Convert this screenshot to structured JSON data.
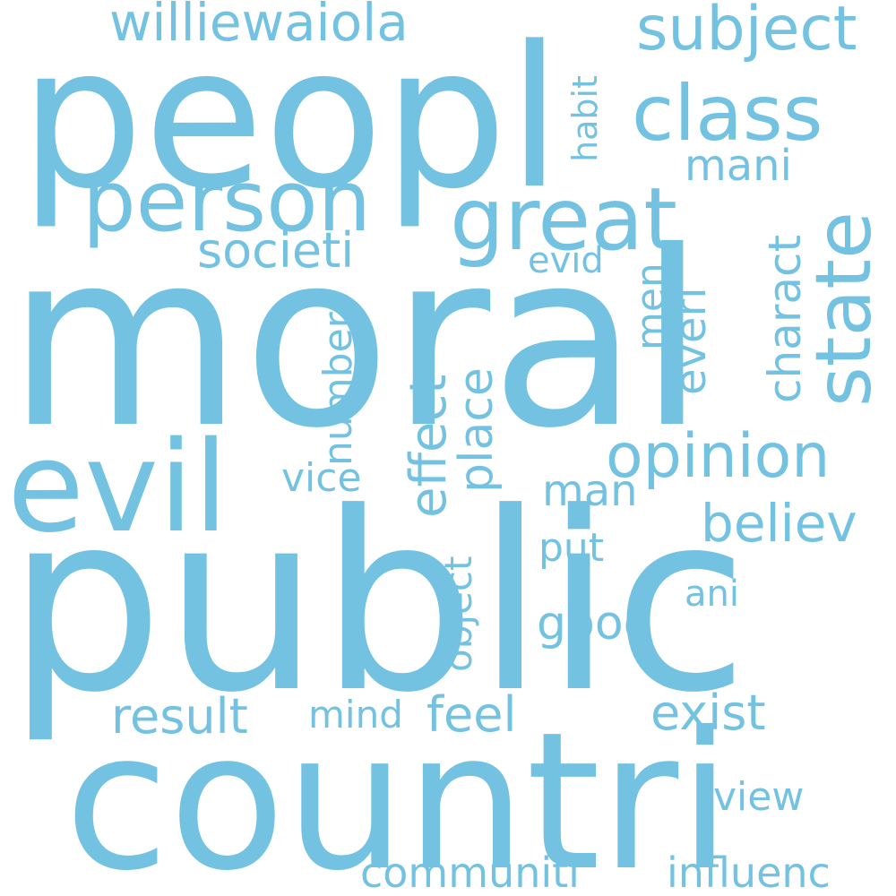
{
  "colors": {
    "background": "#ffffff",
    "word": "#73c2e2"
  },
  "words": [
    {
      "text": "public"
    },
    {
      "text": "moral"
    },
    {
      "text": "countri"
    },
    {
      "text": "peopl"
    },
    {
      "text": "evil"
    },
    {
      "text": "person"
    },
    {
      "text": "great"
    },
    {
      "text": "state"
    },
    {
      "text": "class"
    },
    {
      "text": "subject"
    },
    {
      "text": "williewaiola"
    },
    {
      "text": "opinion"
    },
    {
      "text": "believ"
    },
    {
      "text": "effect"
    },
    {
      "text": "number"
    },
    {
      "text": "place"
    },
    {
      "text": "societi"
    },
    {
      "text": "mani"
    },
    {
      "text": "charact"
    },
    {
      "text": "everi"
    },
    {
      "text": "men"
    },
    {
      "text": "evid"
    },
    {
      "text": "habit"
    },
    {
      "text": "man"
    },
    {
      "text": "good"
    },
    {
      "text": "result"
    },
    {
      "text": "feel"
    },
    {
      "text": "exist"
    },
    {
      "text": "vice"
    },
    {
      "text": "object"
    },
    {
      "text": "put"
    },
    {
      "text": "ani"
    },
    {
      "text": "mind"
    },
    {
      "text": "view"
    },
    {
      "text": "communiti"
    },
    {
      "text": "influenc"
    }
  ]
}
